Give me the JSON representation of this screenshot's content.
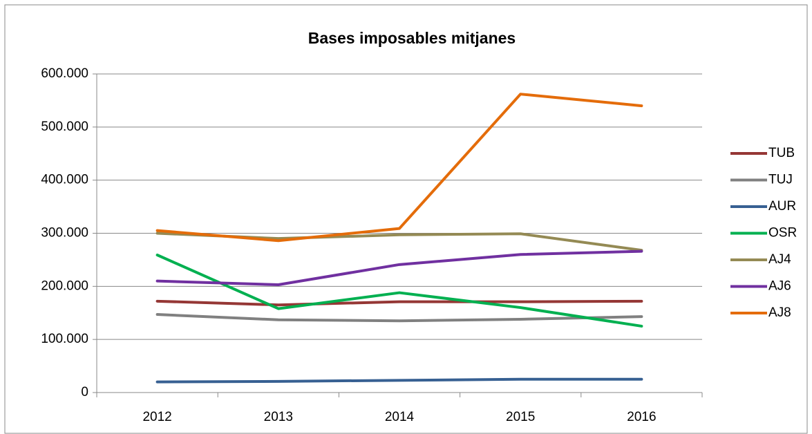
{
  "chart_data": {
    "type": "line",
    "title": "Bases imposables mitjanes",
    "categories": [
      "2012",
      "2013",
      "2014",
      "2015",
      "2016"
    ],
    "ylim": [
      0,
      600000
    ],
    "yticks": [
      0,
      {
        "value": 100000,
        "label": "100.000"
      },
      {
        "value": 200000,
        "label": "200.000"
      },
      {
        "value": 300000,
        "label": "300.000"
      },
      {
        "value": 400000,
        "label": "400.000"
      },
      {
        "value": 500000,
        "label": "500.000"
      },
      {
        "value": 600000,
        "label": "600.000"
      }
    ],
    "grid": true,
    "legend": "right",
    "series": [
      {
        "name": "TUB",
        "color": "#953735",
        "values": [
          172000,
          165000,
          171000,
          171000,
          172000
        ]
      },
      {
        "name": "TUJ",
        "color": "#808080",
        "values": [
          147000,
          137000,
          135000,
          138000,
          143000
        ]
      },
      {
        "name": "AUR",
        "color": "#376092",
        "values": [
          20000,
          21000,
          23000,
          25000,
          25000
        ]
      },
      {
        "name": "OSR",
        "color": "#00b050",
        "values": [
          259000,
          158000,
          188000,
          160000,
          125000
        ]
      },
      {
        "name": "AJ4",
        "color": "#948a54",
        "values": [
          300000,
          290000,
          297000,
          299000,
          268000
        ]
      },
      {
        "name": "AJ6",
        "color": "#7030a0",
        "values": [
          210000,
          203000,
          241000,
          260000,
          266000
        ]
      },
      {
        "name": "AJ8",
        "color": "#e46c0a",
        "values": [
          305000,
          286000,
          309000,
          562000,
          540000
        ]
      }
    ]
  }
}
